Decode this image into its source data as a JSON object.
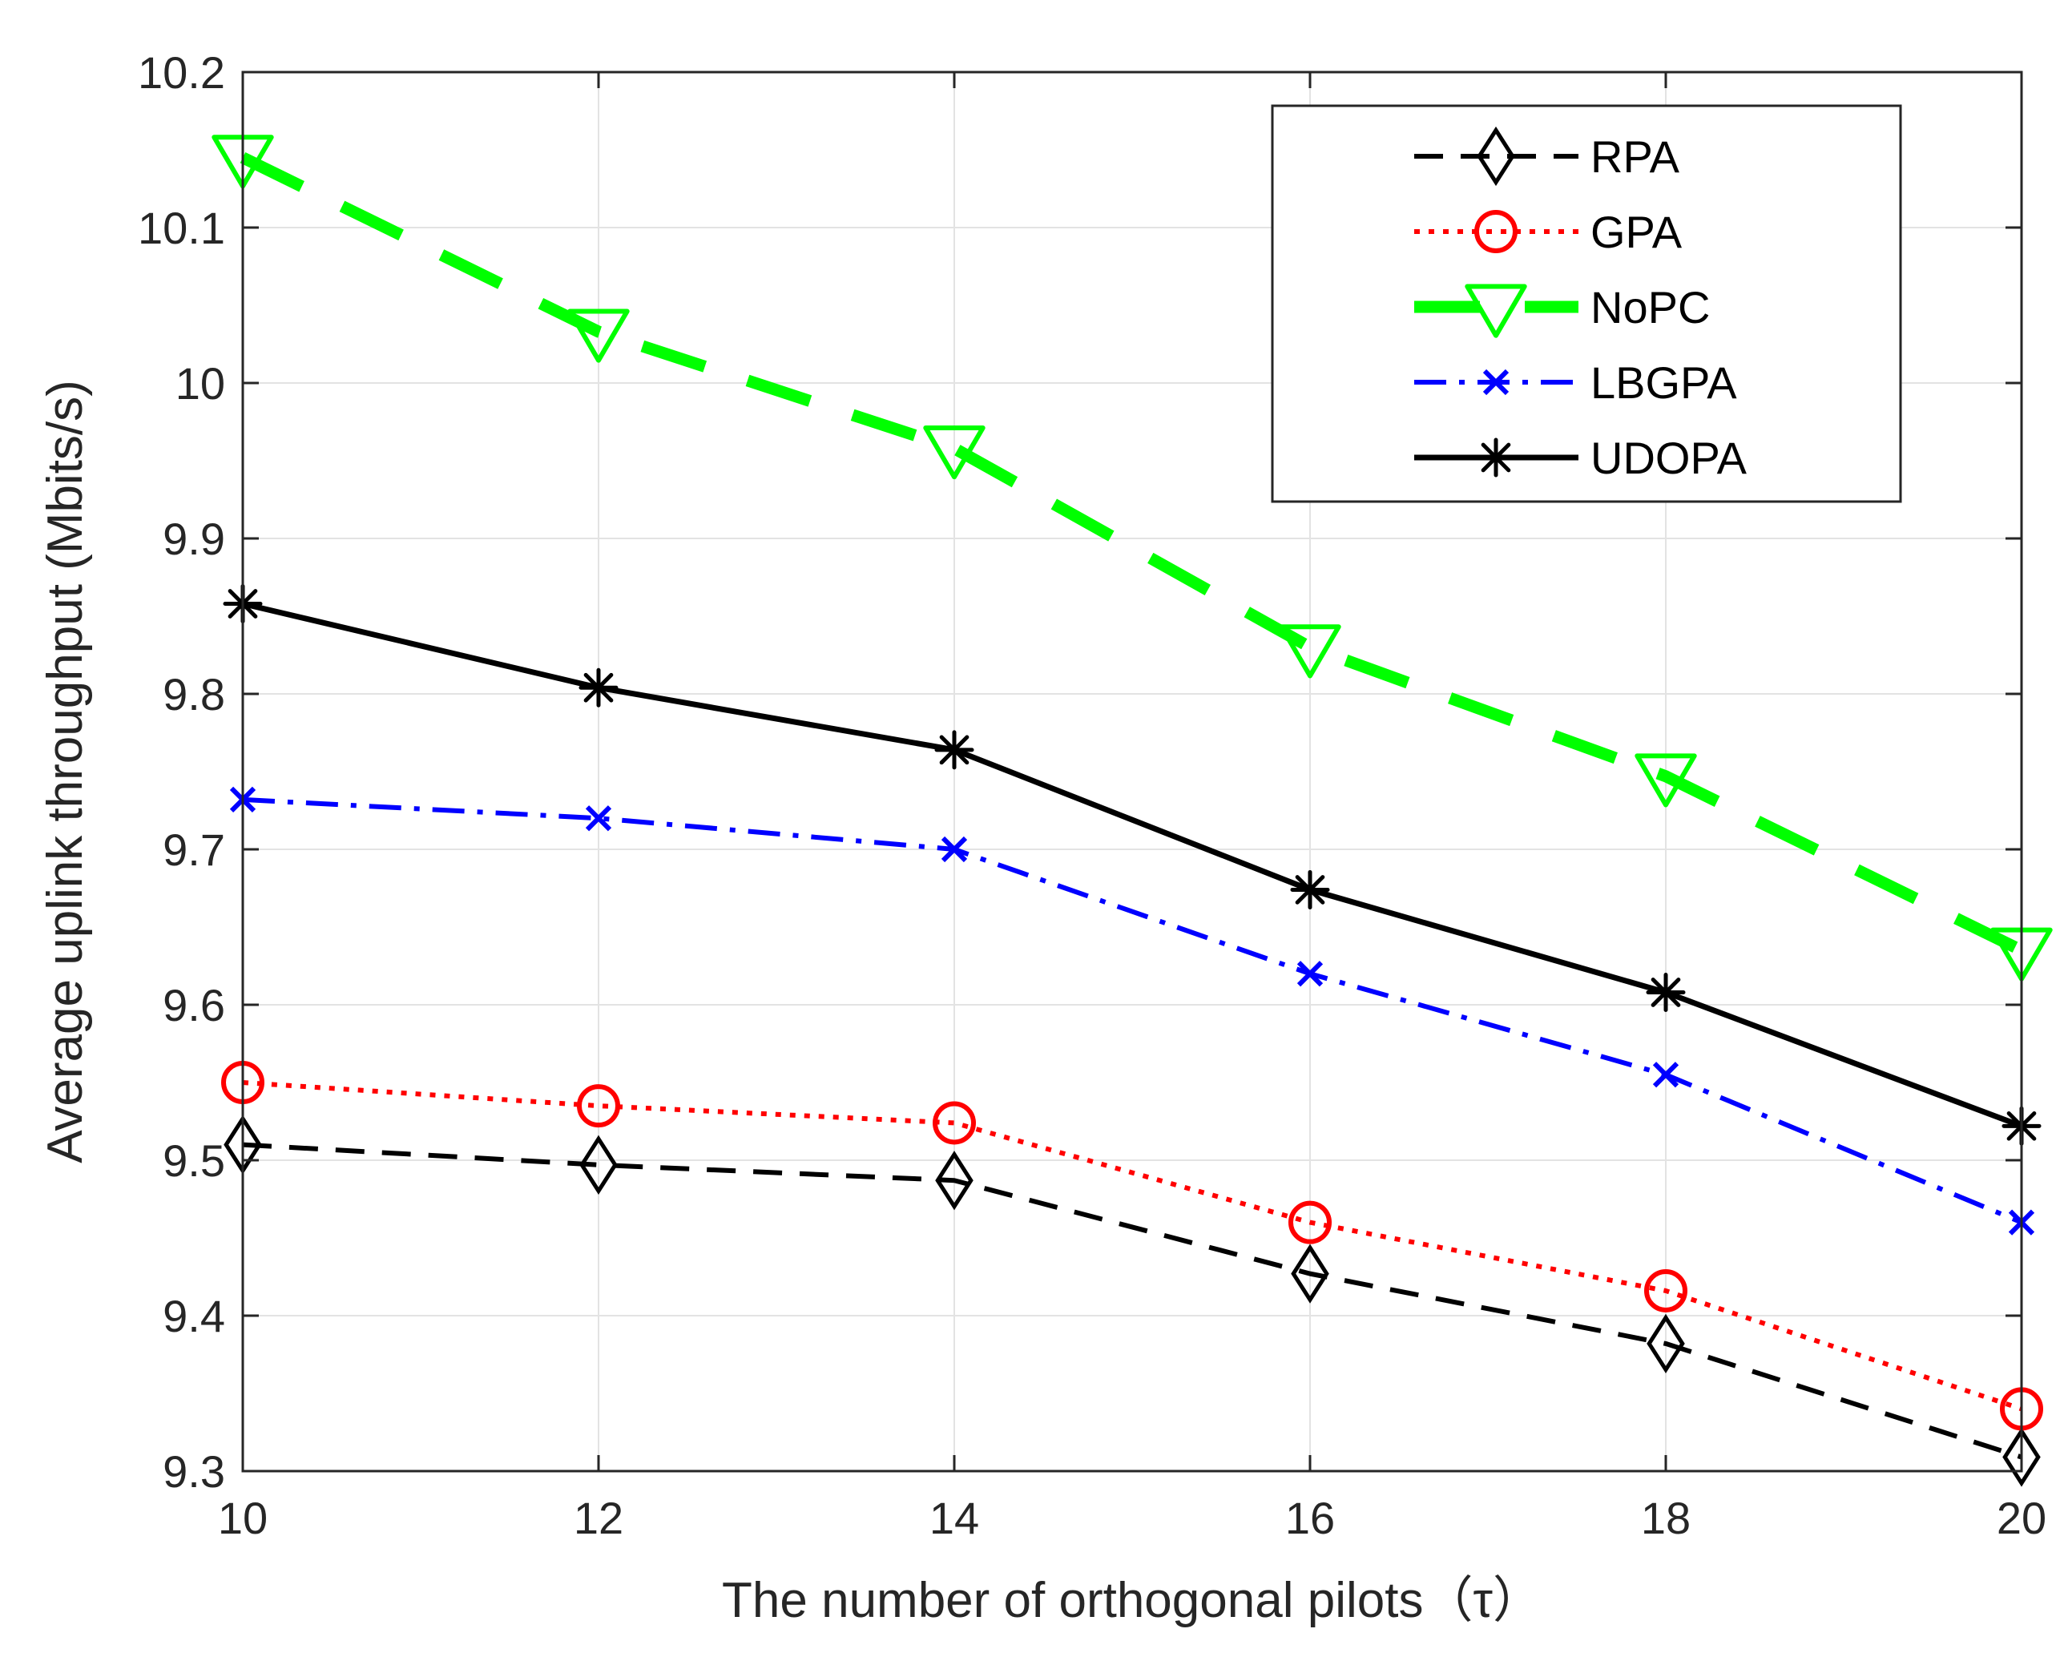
{
  "chart_data": {
    "type": "line",
    "title": "",
    "xlabel": "The number of orthogonal pilots（τ）",
    "ylabel": "Average uplink throughput (Mbits/s)",
    "xlim": [
      10,
      20
    ],
    "ylim": [
      9.3,
      10.2
    ],
    "xticks": [
      10,
      12,
      14,
      16,
      18,
      20
    ],
    "yticks": [
      9.3,
      9.4,
      9.5,
      9.6,
      9.7,
      9.8,
      9.9,
      10,
      10.1,
      10.2
    ],
    "xtick_labels": [
      "10",
      "12",
      "14",
      "16",
      "18",
      "20"
    ],
    "ytick_labels": [
      "9.3",
      "9.4",
      "9.5",
      "9.6",
      "9.7",
      "9.8",
      "9.9",
      "10",
      "10.1",
      "10.2"
    ],
    "grid": true,
    "legend_position": "top-right",
    "x": [
      10,
      12,
      14,
      16,
      18,
      20
    ],
    "series": [
      {
        "name": "RPA",
        "color": "#000000",
        "dash": "dashed",
        "marker": "diamond",
        "values": [
          9.51,
          9.497,
          9.487,
          9.427,
          9.382,
          9.309
        ]
      },
      {
        "name": "GPA",
        "color": "#ff0000",
        "dash": "dotted",
        "marker": "circle",
        "values": [
          9.55,
          9.535,
          9.524,
          9.46,
          9.416,
          9.34
        ]
      },
      {
        "name": "NoPC",
        "color": "#00ff00",
        "dash": "dashed",
        "marker": "triangle-down",
        "values": [
          10.145,
          10.033,
          9.958,
          9.83,
          9.747,
          9.635
        ]
      },
      {
        "name": "LBGPA",
        "color": "#0000ff",
        "dash": "dashdot",
        "marker": "x",
        "values": [
          9.732,
          9.72,
          9.7,
          9.62,
          9.555,
          9.46
        ]
      },
      {
        "name": "UDOPA",
        "color": "#000000",
        "dash": "solid",
        "marker": "asterisk",
        "values": [
          9.858,
          9.804,
          9.764,
          9.674,
          9.608,
          9.522
        ]
      }
    ]
  }
}
